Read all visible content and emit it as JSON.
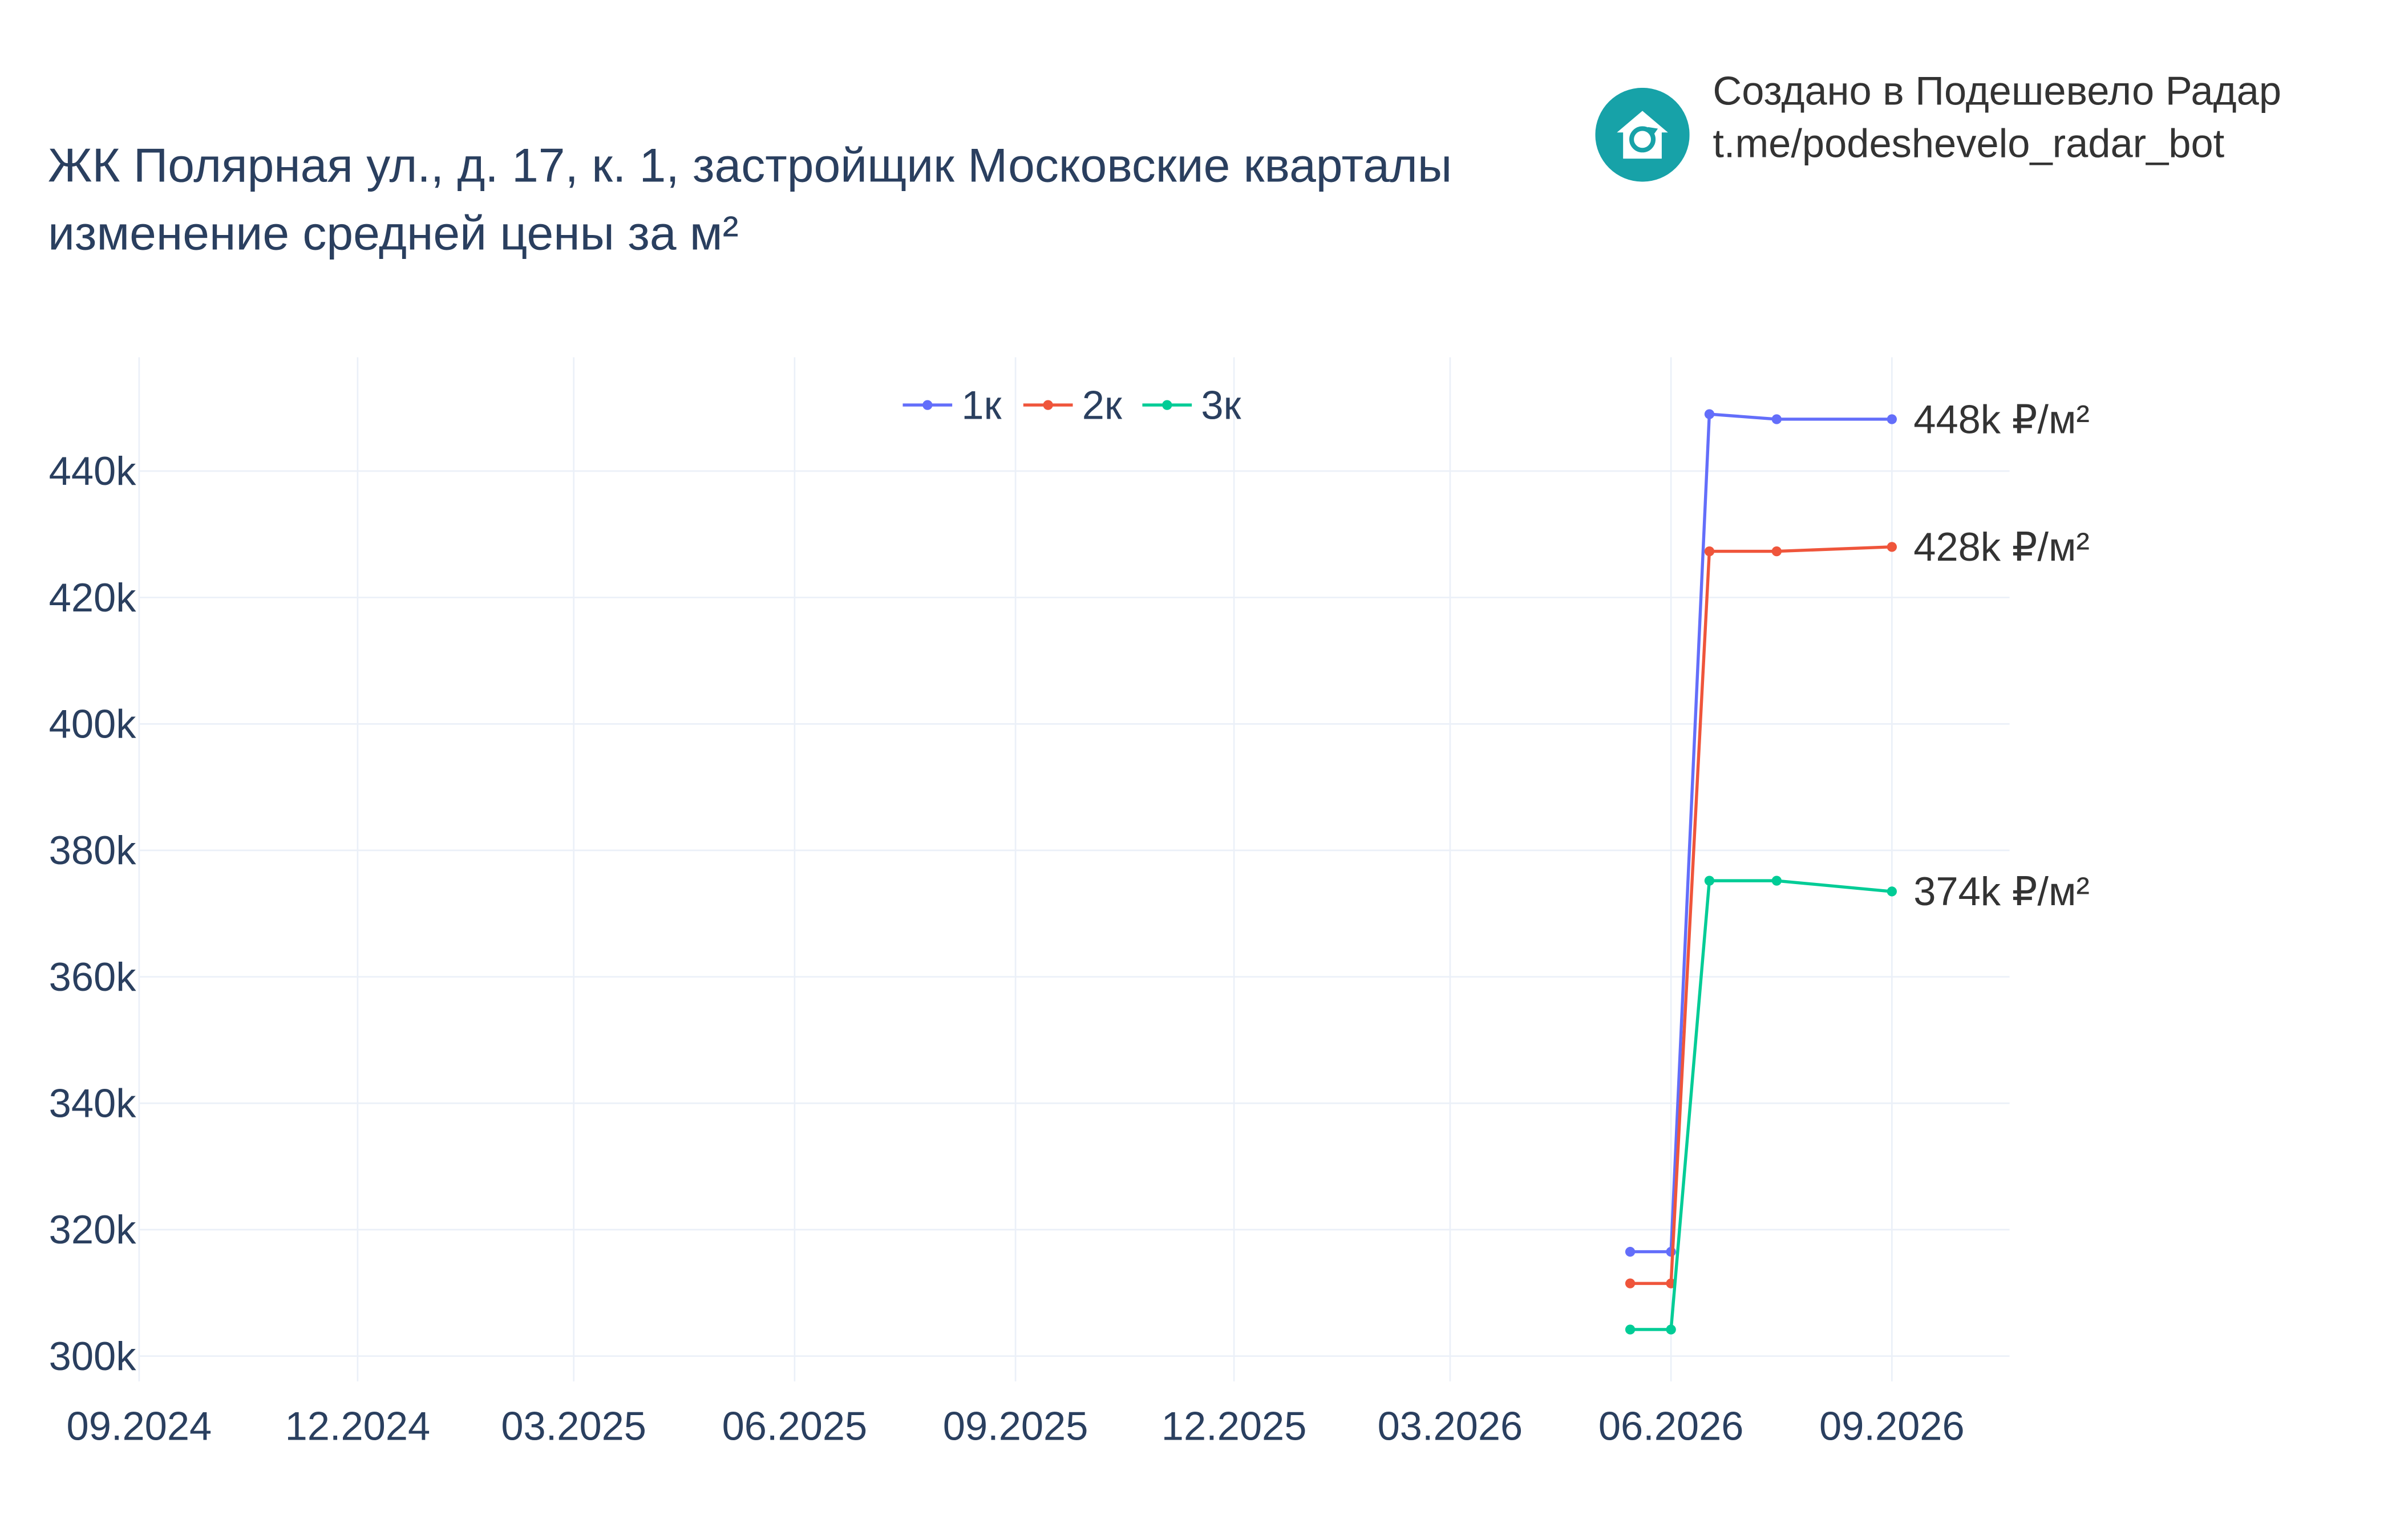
{
  "header": {
    "title_line1": "ЖК Полярная ул., д. 17, к. 1, застройщик Московские кварталы",
    "title_line2": "изменение средней цены за м²",
    "credit_line1": "Создано в Подешевело Радар",
    "credit_line2": "t.me/podeshevelo_radar_bot",
    "logo_icon": "house-refresh-icon",
    "logo_color": "#17a2a8"
  },
  "chart_data": {
    "type": "line",
    "title": "ЖК Полярная ул., д. 17, к. 1, застройщик Московские кварталы изменение средней цены за м²",
    "xlabel": "",
    "ylabel": "",
    "x_ticks": [
      "09.2024",
      "12.2024",
      "03.2025",
      "06.2025",
      "09.2025",
      "12.2025",
      "03.2026",
      "06.2026",
      "09.2026"
    ],
    "y_ticks": [
      "300k",
      "320k",
      "340k",
      "360k",
      "380k",
      "400k",
      "420k",
      "440k"
    ],
    "x_range": [
      "2024-09-01",
      "2026-10-20"
    ],
    "y_range": [
      296000,
      458000
    ],
    "grid": true,
    "legend_position": "top-center",
    "series": [
      {
        "name": "1к",
        "color": "#636efa",
        "points": [
          {
            "x": "2026-05-15",
            "y": 316500
          },
          {
            "x": "2026-06-01",
            "y": 316500
          },
          {
            "x": "2026-06-17",
            "y": 449000
          },
          {
            "x": "2026-07-15",
            "y": 448200
          },
          {
            "x": "2026-09-01",
            "y": 448200
          }
        ],
        "end_label": "448k ₽/м²"
      },
      {
        "name": "2к",
        "color": "#ef553b",
        "points": [
          {
            "x": "2026-05-15",
            "y": 311500
          },
          {
            "x": "2026-06-01",
            "y": 311500
          },
          {
            "x": "2026-06-17",
            "y": 427300
          },
          {
            "x": "2026-07-15",
            "y": 427300
          },
          {
            "x": "2026-09-01",
            "y": 428000
          }
        ],
        "end_label": "428k ₽/м²"
      },
      {
        "name": "3к",
        "color": "#00cc96",
        "points": [
          {
            "x": "2026-05-15",
            "y": 304200
          },
          {
            "x": "2026-06-01",
            "y": 304200
          },
          {
            "x": "2026-06-17",
            "y": 375200
          },
          {
            "x": "2026-07-15",
            "y": 375200
          },
          {
            "x": "2026-09-01",
            "y": 373500
          }
        ],
        "end_label": "374k ₽/м²"
      }
    ]
  }
}
